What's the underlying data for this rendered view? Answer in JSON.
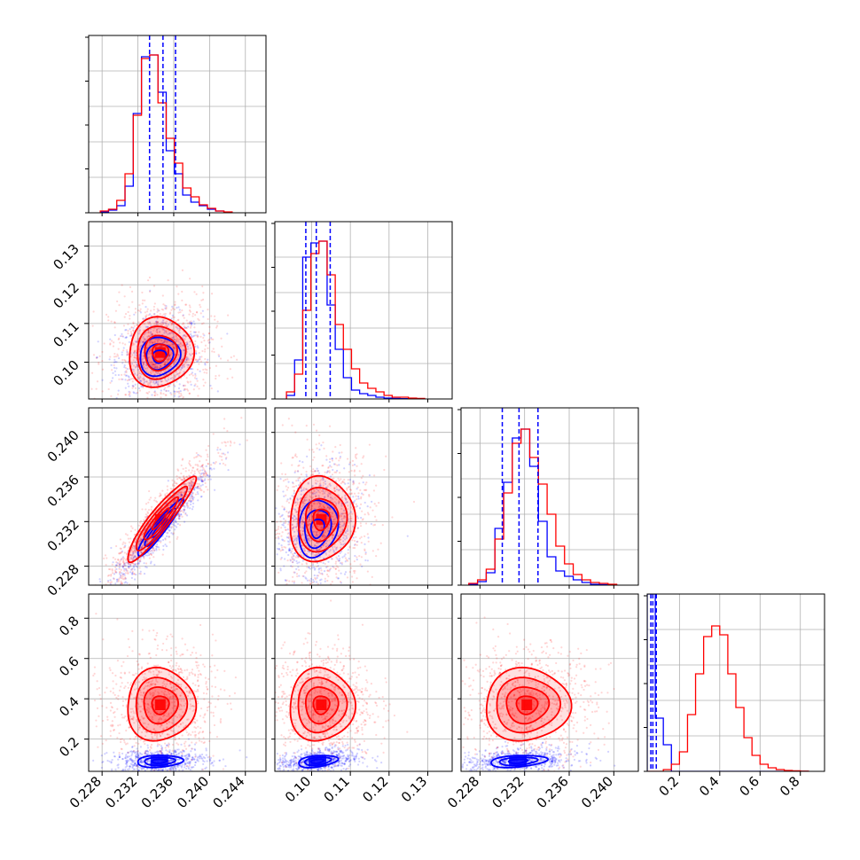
{
  "chart_data": {
    "type": "corner",
    "description_series": [
      {
        "color": "#ff0000"
      },
      {
        "color": "#0000ff"
      }
    ],
    "params": [
      {
        "index": 0,
        "range": [
          0.2265,
          0.2463
        ],
        "ticks": [
          0.228,
          0.232,
          0.236,
          0.24,
          0.244
        ],
        "tick_labels": [
          "0.228",
          "0.232",
          "0.236",
          "0.240",
          "0.244"
        ],
        "red": {
          "center": 0.2345,
          "sd": 0.0019
        },
        "blue": {
          "center": 0.2344,
          "sd": 0.0017
        },
        "quantiles_blue": [
          0.2333,
          0.2348,
          0.2362
        ],
        "hist_red": {
          "edges_start": 0.2278,
          "bin": 0.00092,
          "values": [
            0.01,
            0.02,
            0.07,
            0.22,
            0.55,
            0.87,
            0.89,
            0.62,
            0.42,
            0.28,
            0.14,
            0.09,
            0.045,
            0.025,
            0.01,
            0.005
          ]
        },
        "hist_blue": {
          "edges_start": 0.2278,
          "bin": 0.00092,
          "values": [
            0.005,
            0.015,
            0.04,
            0.15,
            0.56,
            0.88,
            0.89,
            0.68,
            0.35,
            0.22,
            0.1,
            0.06,
            0.04,
            0.02,
            0.01,
            0.003
          ]
        }
      },
      {
        "index": 1,
        "range": [
          0.0905,
          0.1363
        ],
        "ticks": [
          0.1,
          0.11,
          0.12,
          0.13
        ],
        "tick_labels": [
          "0.10",
          "0.11",
          "0.12",
          "0.13"
        ],
        "red": {
          "center": 0.1025,
          "sd": 0.0042
        },
        "blue": {
          "center": 0.1015,
          "sd": 0.0034
        },
        "quantiles_blue": [
          0.0985,
          0.1012,
          0.1048
        ],
        "hist_red": {
          "edges_start": 0.0935,
          "bin": 0.0021,
          "values": [
            0.04,
            0.14,
            0.5,
            0.82,
            0.89,
            0.7,
            0.42,
            0.28,
            0.17,
            0.09,
            0.06,
            0.04,
            0.02,
            0.01,
            0.01,
            0.005,
            0.003
          ]
        },
        "hist_blue": {
          "edges_start": 0.0935,
          "bin": 0.0021,
          "values": [
            0.02,
            0.22,
            0.8,
            0.88,
            0.89,
            0.53,
            0.28,
            0.12,
            0.05,
            0.03,
            0.02,
            0.01,
            0.005,
            0.003,
            0.002,
            0.001,
            0.0
          ]
        }
      },
      {
        "index": 2,
        "range": [
          0.2263,
          0.2422
        ],
        "ticks": [
          0.228,
          0.232,
          0.236,
          0.24
        ],
        "tick_labels": [
          "0.228",
          "0.232",
          "0.236",
          "0.240"
        ],
        "red": {
          "center": 0.2322,
          "sd": 0.0019
        },
        "blue": {
          "center": 0.2314,
          "sd": 0.0017
        },
        "quantiles_blue": [
          0.23,
          0.2315,
          0.2332
        ],
        "hist_red": {
          "edges_start": 0.227,
          "bin": 0.00078,
          "values": [
            0.01,
            0.03,
            0.09,
            0.26,
            0.52,
            0.8,
            0.88,
            0.72,
            0.57,
            0.4,
            0.22,
            0.12,
            0.06,
            0.03,
            0.015,
            0.01,
            0.005
          ]
        },
        "hist_blue": {
          "edges_start": 0.227,
          "bin": 0.00078,
          "values": [
            0.005,
            0.02,
            0.07,
            0.32,
            0.58,
            0.83,
            0.88,
            0.67,
            0.36,
            0.16,
            0.08,
            0.05,
            0.03,
            0.015,
            0.005,
            0.003,
            0.001
          ]
        }
      },
      {
        "index": 3,
        "range": [
          0.04,
          0.92
        ],
        "ticks": [
          0.2,
          0.4,
          0.6,
          0.8
        ],
        "tick_labels": [
          "0.2",
          "0.4",
          "0.6",
          "0.8"
        ],
        "red": {
          "center": 0.37,
          "sd": 0.09
        },
        "blue": {
          "center": 0.09,
          "sd": 0.02
        },
        "quantiles_blue": [
          0.058,
          0.068,
          0.085
        ],
        "hist_red": {
          "edges_start": 0.04,
          "bin": 0.04,
          "values": [
            0.0,
            0.0,
            0.01,
            0.04,
            0.11,
            0.32,
            0.55,
            0.76,
            0.82,
            0.77,
            0.55,
            0.36,
            0.19,
            0.09,
            0.04,
            0.02,
            0.01,
            0.005,
            0.003,
            0.001
          ]
        },
        "hist_blue": {
          "edges_start": 0.04,
          "bin": 0.04,
          "values": [
            1.0,
            0.3,
            0.15,
            0.0,
            0.0,
            0.0,
            0.0,
            0.0,
            0.0,
            0.0,
            0.0,
            0.0,
            0.0,
            0.0,
            0.0,
            0.0,
            0.0,
            0.0,
            0.0,
            0.0
          ]
        }
      }
    ],
    "pairs": [
      {
        "row": 1,
        "col": 0,
        "red_rho": 0.05,
        "blue_rho": 0.1,
        "red_sx": 0.0018,
        "red_sy": 0.0045,
        "blue_sx": 0.0015,
        "blue_sy": 0.0033
      },
      {
        "row": 2,
        "col": 0,
        "red_rho": 0.93,
        "blue_rho": 0.94,
        "red_sx": 0.0019,
        "red_sy": 0.0019,
        "blue_sx": 0.0017,
        "blue_sy": 0.0017
      },
      {
        "row": 2,
        "col": 1,
        "red_rho": 0.05,
        "blue_rho": 0.15,
        "red_sx": 0.0042,
        "red_sy": 0.0019,
        "blue_sx": 0.0034,
        "blue_sy": 0.0017
      },
      {
        "row": 3,
        "col": 0,
        "red_rho": 0.02,
        "blue_rho": 0.15,
        "red_sx": 0.0019,
        "red_sy": 0.09,
        "blue_sx": 0.0017,
        "blue_sy": 0.02
      },
      {
        "row": 3,
        "col": 1,
        "red_rho": 0.02,
        "blue_rho": 0.35,
        "red_sx": 0.0042,
        "red_sy": 0.09,
        "blue_sx": 0.0034,
        "blue_sy": 0.02
      },
      {
        "row": 3,
        "col": 2,
        "red_rho": 0.02,
        "blue_rho": 0.3,
        "red_sx": 0.0019,
        "red_sy": 0.09,
        "blue_sx": 0.0017,
        "blue_sy": 0.02
      }
    ],
    "contour_levels_sigma": [
      0.5,
      1.0,
      1.5,
      2.0
    ],
    "grid": true,
    "legend": "none",
    "title": "",
    "xlabel": "",
    "ylabel": ""
  }
}
